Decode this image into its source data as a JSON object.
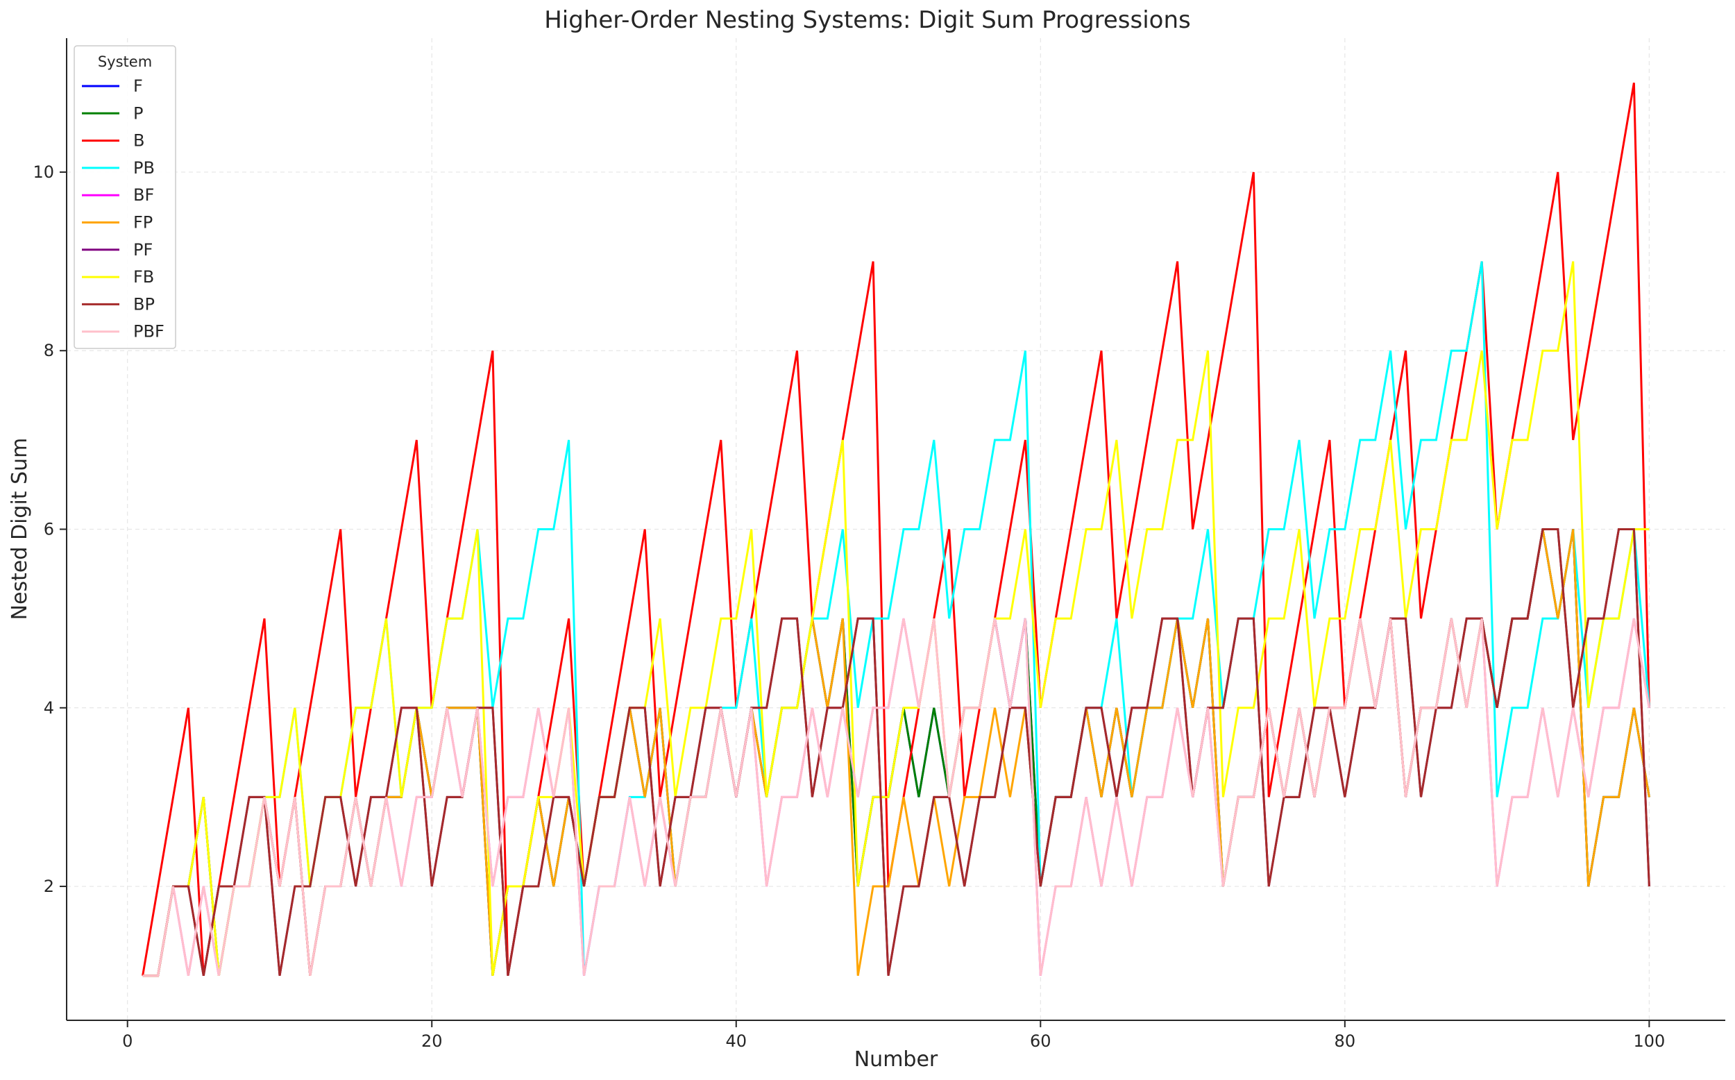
{
  "chart_data": {
    "type": "line",
    "title": "Higher-Order Nesting Systems: Digit Sum Progressions",
    "xlabel": "Number",
    "ylabel": "Nested Digit Sum",
    "xlim": [
      -4,
      105
    ],
    "ylim": [
      0.5,
      11.5
    ],
    "xticks": [
      0,
      20,
      40,
      60,
      80,
      100
    ],
    "yticks": [
      2,
      4,
      6,
      8,
      10
    ],
    "grid": true,
    "legend": {
      "title": "System",
      "placement": "top-left"
    },
    "x": [
      1,
      2,
      3,
      4,
      5,
      6,
      7,
      8,
      9,
      10,
      11,
      12,
      13,
      14,
      15,
      16,
      17,
      18,
      19,
      20,
      21,
      22,
      23,
      24,
      25,
      26,
      27,
      28,
      29,
      30,
      31,
      32,
      33,
      34,
      35,
      36,
      37,
      38,
      39,
      40,
      41,
      42,
      43,
      44,
      45,
      46,
      47,
      48,
      49,
      50,
      51,
      52,
      53,
      54,
      55,
      56,
      57,
      58,
      59,
      60,
      61,
      62,
      63,
      64,
      65,
      66,
      67,
      68,
      69,
      70,
      71,
      72,
      73,
      74,
      75,
      76,
      77,
      78,
      79,
      80,
      81,
      82,
      83,
      84,
      85,
      86,
      87,
      88,
      89,
      90,
      91,
      92,
      93,
      94,
      95,
      96,
      97,
      98,
      99,
      100
    ],
    "series": [
      {
        "name": "F",
        "color": "#0000ff",
        "values": [
          1,
          1,
          2,
          2,
          3,
          1,
          2,
          2,
          3,
          2,
          3,
          1,
          2,
          2,
          3,
          2,
          3,
          3,
          4,
          3,
          4,
          4,
          4,
          1,
          2,
          2,
          3,
          2,
          3,
          2,
          3,
          3,
          4,
          3,
          4,
          2,
          3,
          3,
          4,
          3,
          4,
          3,
          4,
          4,
          5,
          4,
          5,
          2,
          3,
          3,
          4,
          3,
          4,
          3,
          4,
          4,
          5,
          4,
          5,
          2,
          3,
          3,
          4,
          3,
          4,
          3,
          4,
          4,
          5,
          4,
          5,
          2,
          3,
          3,
          4,
          3,
          4,
          3,
          4,
          4,
          5,
          4,
          5,
          3,
          4,
          4,
          5,
          4,
          5,
          4,
          5,
          5,
          6,
          5,
          6,
          2,
          3,
          3,
          4,
          3
        ]
      },
      {
        "name": "P",
        "color": "#008000",
        "values": [
          1,
          1,
          2,
          2,
          3,
          1,
          2,
          2,
          3,
          2,
          3,
          1,
          2,
          2,
          3,
          2,
          3,
          3,
          4,
          3,
          4,
          4,
          4,
          1,
          2,
          2,
          3,
          2,
          3,
          2,
          3,
          3,
          4,
          3,
          4,
          2,
          3,
          3,
          4,
          3,
          4,
          3,
          4,
          4,
          5,
          4,
          5,
          2,
          3,
          3,
          4,
          3,
          4,
          3,
          4,
          4,
          5,
          4,
          5,
          2,
          3,
          3,
          4,
          3,
          4,
          3,
          4,
          4,
          5,
          4,
          5,
          2,
          3,
          3,
          4,
          3,
          4,
          3,
          4,
          4,
          5,
          4,
          5,
          3,
          4,
          4,
          5,
          4,
          5,
          4,
          5,
          5,
          6,
          5,
          6,
          2,
          3,
          3,
          4,
          3
        ]
      },
      {
        "name": "B",
        "color": "#ff0000",
        "values": [
          1,
          2,
          3,
          4,
          1,
          2,
          3,
          4,
          5,
          2,
          3,
          4,
          5,
          6,
          3,
          4,
          5,
          6,
          7,
          4,
          5,
          6,
          7,
          8,
          1,
          2,
          3,
          4,
          5,
          2,
          3,
          4,
          5,
          6,
          3,
          4,
          5,
          6,
          7,
          4,
          5,
          6,
          7,
          8,
          5,
          6,
          7,
          8,
          9,
          2,
          3,
          4,
          5,
          6,
          3,
          4,
          5,
          6,
          7,
          4,
          5,
          6,
          7,
          8,
          5,
          6,
          7,
          8,
          9,
          6,
          7,
          8,
          9,
          10,
          3,
          4,
          5,
          6,
          7,
          4,
          5,
          6,
          7,
          8,
          5,
          6,
          7,
          8,
          9,
          6,
          7,
          8,
          9,
          10,
          7,
          8,
          9,
          10,
          11,
          4
        ]
      },
      {
        "name": "PB",
        "color": "#00ffff",
        "values": [
          1,
          1,
          2,
          2,
          3,
          1,
          2,
          2,
          3,
          3,
          4,
          2,
          3,
          3,
          4,
          4,
          5,
          3,
          4,
          4,
          5,
          5,
          6,
          4,
          5,
          5,
          6,
          6,
          7,
          1,
          2,
          2,
          3,
          3,
          4,
          2,
          3,
          3,
          4,
          4,
          5,
          3,
          4,
          4,
          5,
          5,
          6,
          4,
          5,
          5,
          6,
          6,
          7,
          5,
          6,
          6,
          7,
          7,
          8,
          2,
          3,
          3,
          4,
          4,
          5,
          3,
          4,
          4,
          5,
          5,
          6,
          4,
          5,
          5,
          6,
          6,
          7,
          5,
          6,
          6,
          7,
          7,
          8,
          6,
          7,
          7,
          8,
          8,
          9,
          3,
          4,
          4,
          5,
          5,
          6,
          4,
          5,
          5,
          6,
          4
        ]
      },
      {
        "name": "BF",
        "color": "#ff00ff",
        "values": [
          1,
          1,
          2,
          1,
          2,
          1,
          2,
          2,
          3,
          2,
          3,
          1,
          2,
          2,
          3,
          2,
          3,
          2,
          3,
          3,
          4,
          3,
          4,
          2,
          3,
          3,
          4,
          3,
          4,
          1,
          2,
          2,
          3,
          2,
          3,
          2,
          3,
          3,
          4,
          3,
          4,
          2,
          3,
          3,
          4,
          3,
          4,
          3,
          4,
          4,
          5,
          4,
          5,
          3,
          4,
          4,
          5,
          4,
          5,
          1,
          2,
          2,
          3,
          2,
          3,
          2,
          3,
          3,
          4,
          3,
          4,
          2,
          3,
          3,
          4,
          3,
          4,
          3,
          4,
          4,
          5,
          4,
          5,
          3,
          4,
          4,
          5,
          4,
          5,
          2,
          3,
          3,
          4,
          3,
          4,
          3,
          4,
          4,
          5,
          4
        ]
      },
      {
        "name": "FP",
        "color": "#ffa500",
        "values": [
          1,
          1,
          2,
          2,
          3,
          1,
          2,
          2,
          3,
          2,
          3,
          1,
          2,
          2,
          3,
          2,
          3,
          3,
          4,
          3,
          4,
          4,
          4,
          1,
          2,
          2,
          3,
          2,
          3,
          2,
          3,
          3,
          4,
          3,
          4,
          2,
          3,
          3,
          4,
          3,
          4,
          3,
          4,
          4,
          5,
          4,
          5,
          1,
          2,
          2,
          3,
          2,
          3,
          2,
          3,
          3,
          4,
          3,
          4,
          2,
          3,
          3,
          4,
          3,
          4,
          3,
          4,
          4,
          5,
          4,
          5,
          2,
          3,
          3,
          4,
          3,
          4,
          3,
          4,
          4,
          5,
          4,
          5,
          3,
          4,
          4,
          5,
          4,
          5,
          4,
          5,
          5,
          6,
          5,
          6,
          2,
          3,
          3,
          4,
          3
        ]
      },
      {
        "name": "PF",
        "color": "#800080",
        "values": [
          1,
          1,
          2,
          2,
          1,
          2,
          2,
          3,
          3,
          1,
          2,
          2,
          3,
          3,
          2,
          3,
          3,
          4,
          4,
          2,
          3,
          3,
          4,
          4,
          1,
          2,
          2,
          3,
          3,
          2,
          3,
          3,
          4,
          4,
          2,
          3,
          3,
          4,
          4,
          3,
          4,
          4,
          5,
          5,
          3,
          4,
          4,
          5,
          5,
          1,
          2,
          2,
          3,
          3,
          2,
          3,
          3,
          4,
          4,
          2,
          3,
          3,
          4,
          4,
          3,
          4,
          4,
          5,
          5,
          3,
          4,
          4,
          5,
          5,
          2,
          3,
          3,
          4,
          4,
          3,
          4,
          4,
          5,
          5,
          3,
          4,
          4,
          5,
          5,
          4,
          5,
          5,
          6,
          6,
          4,
          5,
          5,
          6,
          6,
          2
        ]
      },
      {
        "name": "FB",
        "color": "#ffff00",
        "values": [
          1,
          1,
          2,
          2,
          3,
          1,
          2,
          2,
          3,
          3,
          4,
          2,
          3,
          3,
          4,
          4,
          5,
          3,
          4,
          4,
          5,
          5,
          6,
          1,
          2,
          2,
          3,
          3,
          4,
          2,
          3,
          3,
          4,
          4,
          5,
          3,
          4,
          4,
          5,
          5,
          6,
          3,
          4,
          4,
          5,
          6,
          7,
          2,
          3,
          3,
          4,
          4,
          5,
          3,
          4,
          4,
          5,
          5,
          6,
          4,
          5,
          5,
          6,
          6,
          7,
          5,
          6,
          6,
          7,
          7,
          8,
          3,
          4,
          4,
          5,
          5,
          6,
          4,
          5,
          5,
          6,
          6,
          7,
          5,
          6,
          6,
          7,
          7,
          8,
          6,
          7,
          7,
          8,
          8,
          9,
          4,
          5,
          5,
          6,
          6
        ]
      },
      {
        "name": "BP",
        "color": "#a52a2a",
        "values": [
          1,
          1,
          2,
          2,
          1,
          2,
          2,
          3,
          3,
          1,
          2,
          2,
          3,
          3,
          2,
          3,
          3,
          4,
          4,
          2,
          3,
          3,
          4,
          4,
          1,
          2,
          2,
          3,
          3,
          2,
          3,
          3,
          4,
          4,
          2,
          3,
          3,
          4,
          4,
          3,
          4,
          4,
          5,
          5,
          3,
          4,
          4,
          5,
          5,
          1,
          2,
          2,
          3,
          3,
          2,
          3,
          3,
          4,
          4,
          2,
          3,
          3,
          4,
          4,
          3,
          4,
          4,
          5,
          5,
          3,
          4,
          4,
          5,
          5,
          2,
          3,
          3,
          4,
          4,
          3,
          4,
          4,
          5,
          5,
          3,
          4,
          4,
          5,
          5,
          4,
          5,
          5,
          6,
          6,
          4,
          5,
          5,
          6,
          6,
          2
        ]
      },
      {
        "name": "PBF",
        "color": "#ffc0cb",
        "values": [
          1,
          1,
          2,
          1,
          2,
          1,
          2,
          2,
          3,
          2,
          3,
          1,
          2,
          2,
          3,
          2,
          3,
          2,
          3,
          3,
          4,
          3,
          4,
          2,
          3,
          3,
          4,
          3,
          4,
          1,
          2,
          2,
          3,
          2,
          3,
          2,
          3,
          3,
          4,
          3,
          4,
          2,
          3,
          3,
          4,
          3,
          4,
          3,
          4,
          4,
          5,
          4,
          5,
          3,
          4,
          4,
          5,
          4,
          5,
          1,
          2,
          2,
          3,
          2,
          3,
          2,
          3,
          3,
          4,
          3,
          4,
          2,
          3,
          3,
          4,
          3,
          4,
          3,
          4,
          4,
          5,
          4,
          5,
          3,
          4,
          4,
          5,
          4,
          5,
          2,
          3,
          3,
          4,
          3,
          4,
          3,
          4,
          4,
          5,
          4
        ]
      }
    ]
  }
}
